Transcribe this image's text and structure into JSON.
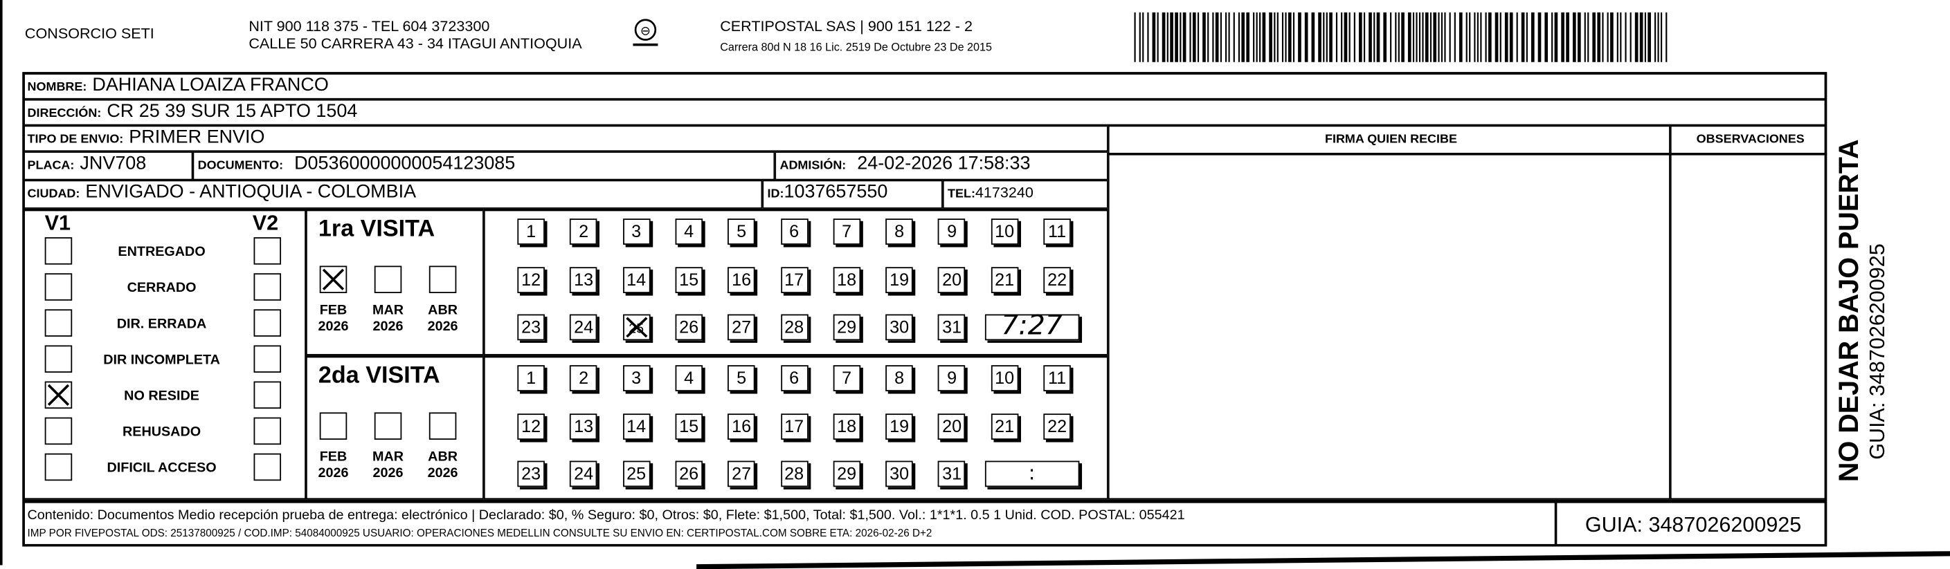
{
  "header": {
    "company": "CONSORCIO SETI",
    "nit_line": "NIT 900 118 375 - TEL 604 3723300",
    "address_line": "CALLE 50 CARRERA 43 - 34 ITAGUI ANTIOQUIA",
    "logo_text": "CERTIPOSTAL",
    "carrier_line": "CERTIPOSTAL SAS | 900 151 122 - 2",
    "license_line": "Carrera 80d N 18 16  Lic. 2519 De Octubre 23 De 2015",
    "barcode_icon": "barcode-icon"
  },
  "recipient": {
    "nombre_label": "NOMBRE:",
    "nombre": "DAHIANA LOAIZA FRANCO",
    "direccion_label": "DIRECCIÓN:",
    "direccion": "CR 25 39 SUR 15 APTO 1504",
    "tipo_label": "TIPO DE ENVIO:",
    "tipo": "PRIMER ENVIO",
    "placa_label": "PLACA:",
    "placa": "JNV708",
    "documento_label": "DOCUMENTO:",
    "documento": "D05360000000054123085",
    "admision_label": "ADMISIÓN:",
    "admision": "24-02-2026 17:58:33",
    "ciudad_label": "CIUDAD:",
    "ciudad": "ENVIGADO - ANTIOQUIA - COLOMBIA",
    "id_label": "ID:",
    "id": "1037657550",
    "tel_label": "TEL:",
    "tel": "4173240"
  },
  "columns": {
    "firma": "FIRMA QUIEN RECIBE",
    "observaciones": "OBSERVACIONES"
  },
  "status": {
    "v1_label": "V1",
    "v2_label": "V2",
    "items": [
      {
        "label": "ENTREGADO",
        "v1": false,
        "v2": false
      },
      {
        "label": "CERRADO",
        "v1": false,
        "v2": false
      },
      {
        "label": "DIR. ERRADA",
        "v1": false,
        "v2": false
      },
      {
        "label": "DIR INCOMPLETA",
        "v1": false,
        "v2": false
      },
      {
        "label": "NO RESIDE",
        "v1": true,
        "v2": false
      },
      {
        "label": "REHUSADO",
        "v1": false,
        "v2": false
      },
      {
        "label": "DIFICIL ACCESO",
        "v1": false,
        "v2": false
      }
    ]
  },
  "visits": [
    {
      "title": "1ra VISITA",
      "months": [
        {
          "name": "FEB",
          "year": "2026",
          "checked": true
        },
        {
          "name": "MAR",
          "year": "2026",
          "checked": false
        },
        {
          "name": "ABR",
          "year": "2026",
          "checked": false
        }
      ],
      "marked_day": 25,
      "time": "7:27"
    },
    {
      "title": "2da VISITA",
      "months": [
        {
          "name": "FEB",
          "year": "2026",
          "checked": false
        },
        {
          "name": "MAR",
          "year": "2026",
          "checked": false
        },
        {
          "name": "ABR",
          "year": "2026",
          "checked": false
        }
      ],
      "marked_day": null,
      "time": ":"
    }
  ],
  "days": [
    1,
    2,
    3,
    4,
    5,
    6,
    7,
    8,
    9,
    10,
    11,
    12,
    13,
    14,
    15,
    16,
    17,
    18,
    19,
    20,
    21,
    22,
    23,
    24,
    25,
    26,
    27,
    28,
    29,
    30,
    31
  ],
  "footer": {
    "contenido": "Contenido: Documentos Medio recepción prueba de entrega: electrónico | Declarado: $0, % Seguro: $0, Otros: $0, Flete: $1,500, Total: $1,500. Vol.: 1*1*1. 0.5  1 Unid. COD. POSTAL: 055421",
    "imp": "IMP POR FIVEPOSTAL ODS: 25137800925 / COD.IMP: 54084000925 USUARIO: OPERACIONES MEDELLIN CONSULTE SU ENVIO EN: CERTIPOSTAL.COM SOBRE ETA: 2026-02-26 D+2",
    "guia": "GUIA: 3487026200925"
  },
  "side": {
    "warning": "NO DEJAR BAJO PUERTA",
    "guia": "GUIA: 3487026200925"
  }
}
